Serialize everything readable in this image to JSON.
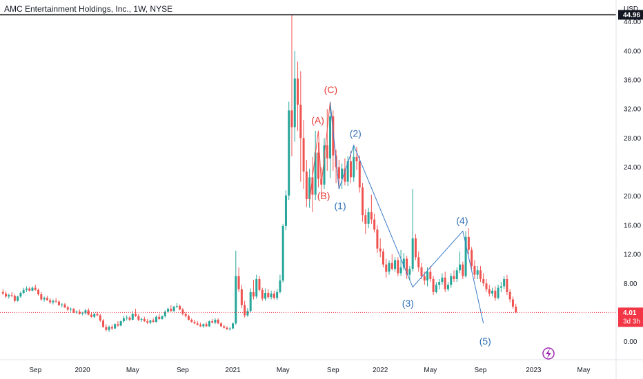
{
  "chart_data": {
    "type": "candlestick",
    "title": "AMC Entertainment Holdings, Inc., 1W, NYSE",
    "currency": "USD",
    "y_range": [
      -2.5,
      47
    ],
    "y_ticks": [
      "44.00",
      "40.00",
      "36.00",
      "32.00",
      "28.00",
      "24.00",
      "20.00",
      "16.00",
      "12.00",
      "8.00",
      "4.00",
      "0.00"
    ],
    "y_tick_values": [
      44,
      40,
      36,
      32,
      28,
      24,
      20,
      16,
      12,
      8,
      4,
      0
    ],
    "x_ticks": [
      {
        "label": "Sep",
        "t": 8
      },
      {
        "label": "2020",
        "t": 24
      },
      {
        "label": "May",
        "t": 41
      },
      {
        "label": "Sep",
        "t": 58
      },
      {
        "label": "2021",
        "t": 75
      },
      {
        "label": "May",
        "t": 92
      },
      {
        "label": "Sep",
        "t": 109
      },
      {
        "label": "2022",
        "t": 125
      },
      {
        "label": "May",
        "t": 142
      },
      {
        "label": "Sep",
        "t": 159
      },
      {
        "label": "2023",
        "t": 177
      },
      {
        "label": "May",
        "t": 194
      }
    ],
    "x_range": [
      -4,
      205
    ],
    "horizontal_line": {
      "value": 44.96,
      "label": "44.96",
      "color": "#000000"
    },
    "last_price": {
      "value": 4.01,
      "label": "4.01",
      "countdown": "3d 3h",
      "color": "#f23645"
    },
    "candles": [
      [
        -3,
        6.8,
        7.2,
        6.4,
        6.6
      ],
      [
        -2,
        6.6,
        6.9,
        6.0,
        6.2
      ],
      [
        -1,
        6.2,
        6.6,
        5.9,
        6.4
      ],
      [
        0,
        6.4,
        6.8,
        6.1,
        6.3
      ],
      [
        1,
        6.3,
        6.5,
        5.4,
        5.6
      ],
      [
        2,
        5.6,
        6.3,
        5.5,
        6.2
      ],
      [
        3,
        6.2,
        6.9,
        6.0,
        6.7
      ],
      [
        4,
        6.7,
        7.4,
        6.5,
        7.1
      ],
      [
        5,
        7.1,
        7.6,
        6.8,
        7.3
      ],
      [
        6,
        7.3,
        7.5,
        6.9,
        7.0
      ],
      [
        7,
        7.0,
        7.6,
        6.9,
        7.4
      ],
      [
        8,
        7.4,
        7.8,
        7.0,
        7.1
      ],
      [
        9,
        7.1,
        7.3,
        6.3,
        6.5
      ],
      [
        10,
        6.5,
        6.8,
        5.6,
        5.8
      ],
      [
        11,
        5.8,
        6.2,
        5.5,
        6.0
      ],
      [
        12,
        6.0,
        6.3,
        5.6,
        5.7
      ],
      [
        13,
        5.7,
        6.0,
        5.2,
        5.4
      ],
      [
        14,
        5.4,
        5.8,
        5.1,
        5.6
      ],
      [
        15,
        5.6,
        6.0,
        5.3,
        5.5
      ],
      [
        16,
        5.5,
        5.7,
        4.9,
        5.0
      ],
      [
        17,
        5.0,
        5.3,
        4.7,
        5.1
      ],
      [
        18,
        5.1,
        5.3,
        4.6,
        4.7
      ],
      [
        19,
        4.7,
        4.9,
        4.2,
        4.4
      ],
      [
        20,
        4.4,
        4.7,
        4.1,
        4.5
      ],
      [
        21,
        4.5,
        4.6,
        3.9,
        4.0
      ],
      [
        22,
        4.0,
        4.3,
        3.8,
        4.1
      ],
      [
        23,
        4.1,
        4.4,
        3.7,
        3.8
      ],
      [
        24,
        3.8,
        4.1,
        3.6,
        3.9
      ],
      [
        25,
        3.9,
        4.5,
        3.7,
        4.3
      ],
      [
        26,
        4.3,
        4.6,
        3.6,
        3.7
      ],
      [
        27,
        3.7,
        4.0,
        3.3,
        3.4
      ],
      [
        28,
        3.4,
        3.9,
        3.2,
        3.8
      ],
      [
        29,
        3.8,
        4.1,
        3.5,
        3.6
      ],
      [
        30,
        3.6,
        3.8,
        2.7,
        2.9
      ],
      [
        31,
        2.9,
        3.1,
        1.9,
        2.0
      ],
      [
        32,
        2.0,
        2.4,
        1.4,
        1.6
      ],
      [
        33,
        1.6,
        2.2,
        1.3,
        2.0
      ],
      [
        34,
        2.0,
        2.3,
        1.6,
        1.8
      ],
      [
        35,
        1.8,
        2.5,
        1.7,
        2.4
      ],
      [
        36,
        2.4,
        2.8,
        2.0,
        2.2
      ],
      [
        37,
        2.2,
        2.9,
        2.1,
        2.8
      ],
      [
        38,
        2.8,
        3.5,
        2.6,
        3.2
      ],
      [
        39,
        3.2,
        3.6,
        2.9,
        3.3
      ],
      [
        40,
        3.3,
        3.5,
        2.8,
        3.0
      ],
      [
        41,
        3.0,
        4.2,
        2.9,
        3.8
      ],
      [
        42,
        3.8,
        4.5,
        3.4,
        3.5
      ],
      [
        43,
        3.5,
        3.8,
        2.8,
        3.0
      ],
      [
        44,
        3.0,
        3.3,
        2.7,
        3.1
      ],
      [
        45,
        3.1,
        3.4,
        2.7,
        2.8
      ],
      [
        46,
        2.8,
        3.1,
        2.4,
        2.6
      ],
      [
        47,
        2.6,
        3.0,
        2.4,
        2.9
      ],
      [
        48,
        2.9,
        3.2,
        2.6,
        2.7
      ],
      [
        49,
        2.7,
        3.6,
        2.6,
        3.4
      ],
      [
        50,
        3.4,
        3.8,
        3.0,
        3.1
      ],
      [
        51,
        3.1,
        3.6,
        3.0,
        3.5
      ],
      [
        52,
        3.5,
        4.3,
        3.3,
        4.1
      ],
      [
        53,
        4.1,
        4.7,
        3.9,
        4.5
      ],
      [
        54,
        4.5,
        5.0,
        4.1,
        4.2
      ],
      [
        55,
        4.2,
        4.9,
        4.1,
        4.8
      ],
      [
        56,
        4.8,
        5.3,
        4.6,
        4.9
      ],
      [
        57,
        4.9,
        5.1,
        4.3,
        4.4
      ],
      [
        58,
        4.4,
        4.6,
        3.6,
        3.8
      ],
      [
        59,
        3.8,
        4.0,
        3.3,
        3.5
      ],
      [
        60,
        3.5,
        3.7,
        2.9,
        3.0
      ],
      [
        61,
        3.0,
        3.2,
        2.6,
        2.7
      ],
      [
        62,
        2.7,
        3.0,
        2.4,
        2.5
      ],
      [
        63,
        2.5,
        2.8,
        2.2,
        2.3
      ],
      [
        64,
        2.3,
        2.6,
        2.0,
        2.1
      ],
      [
        65,
        2.1,
        2.5,
        1.9,
        2.4
      ],
      [
        66,
        2.4,
        2.7,
        2.0,
        2.1
      ],
      [
        67,
        2.1,
        2.9,
        2.0,
        2.8
      ],
      [
        68,
        2.8,
        3.1,
        2.5,
        2.6
      ],
      [
        69,
        2.6,
        3.2,
        2.4,
        3.0
      ],
      [
        70,
        3.0,
        3.2,
        2.4,
        2.5
      ],
      [
        71,
        2.5,
        2.7,
        2.0,
        2.1
      ],
      [
        72,
        2.1,
        2.3,
        1.8,
        1.9
      ],
      [
        73,
        1.9,
        2.1,
        1.6,
        1.7
      ],
      [
        74,
        1.7,
        2.0,
        1.5,
        1.8
      ],
      [
        75,
        1.8,
        2.6,
        1.7,
        2.5
      ],
      [
        76,
        2.5,
        12.5,
        2.3,
        9.0
      ],
      [
        77,
        9.0,
        10.2,
        6.8,
        7.2
      ],
      [
        78,
        7.2,
        7.8,
        4.6,
        5.0
      ],
      [
        79,
        5.0,
        5.6,
        3.3,
        3.6
      ],
      [
        80,
        3.6,
        4.6,
        3.4,
        4.2
      ],
      [
        81,
        4.2,
        7.3,
        4.0,
        6.8
      ],
      [
        82,
        6.8,
        8.5,
        5.8,
        6.2
      ],
      [
        83,
        6.2,
        9.2,
        5.9,
        8.6
      ],
      [
        84,
        8.6,
        9.0,
        6.9,
        7.1
      ],
      [
        85,
        7.1,
        7.4,
        5.6,
        5.9
      ],
      [
        86,
        5.9,
        7.3,
        5.6,
        6.7
      ],
      [
        87,
        6.7,
        7.2,
        5.9,
        6.1
      ],
      [
        88,
        6.1,
        7.0,
        5.8,
        6.6
      ],
      [
        89,
        6.6,
        7.0,
        5.8,
        6.0
      ],
      [
        90,
        6.0,
        7.2,
        5.7,
        6.8
      ],
      [
        91,
        6.8,
        9.2,
        6.6,
        8.4
      ],
      [
        92,
        8.4,
        16.2,
        8.1,
        15.9
      ],
      [
        93,
        15.9,
        20.8,
        15.3,
        20.1
      ],
      [
        94,
        20.1,
        33.0,
        19.5,
        31.8
      ],
      [
        95,
        31.8,
        44.96,
        25.5,
        29.5
      ],
      [
        96,
        29.5,
        40.0,
        27.5,
        36.2
      ],
      [
        97,
        36.2,
        38.5,
        29.0,
        32.6
      ],
      [
        98,
        32.6,
        37.2,
        22.0,
        28.0
      ],
      [
        99,
        28.0,
        30.5,
        21.0,
        23.4
      ],
      [
        100,
        23.4,
        25.0,
        18.5,
        19.6
      ],
      [
        101,
        19.6,
        23.8,
        18.4,
        22.6
      ],
      [
        102,
        22.6,
        25.4,
        17.8,
        20.2
      ],
      [
        103,
        20.2,
        29.0,
        19.5,
        26.0
      ],
      [
        104,
        26.0,
        27.4,
        21.2,
        22.4
      ],
      [
        105,
        22.4,
        24.0,
        20.3,
        21.6
      ],
      [
        106,
        21.6,
        28.0,
        21.0,
        27.0
      ],
      [
        107,
        27.0,
        32.0,
        23.5,
        25.2
      ],
      [
        108,
        25.2,
        33.0,
        22.5,
        31.0
      ],
      [
        109,
        31.0,
        31.8,
        23.5,
        25.6
      ],
      [
        110,
        25.6,
        26.4,
        21.8,
        24.0
      ],
      [
        111,
        24.0,
        25.0,
        21.3,
        22.4
      ],
      [
        112,
        22.4,
        24.5,
        21.0,
        23.8
      ],
      [
        113,
        23.8,
        25.2,
        21.5,
        22.0
      ],
      [
        114,
        22.0,
        25.5,
        21.4,
        24.8
      ],
      [
        115,
        24.8,
        26.2,
        21.8,
        22.6
      ],
      [
        116,
        22.6,
        27.0,
        22.0,
        25.4
      ],
      [
        117,
        25.4,
        26.8,
        23.6,
        24.8
      ],
      [
        118,
        24.8,
        25.6,
        20.5,
        21.2
      ],
      [
        119,
        21.2,
        21.8,
        16.5,
        17.4
      ],
      [
        120,
        17.4,
        18.2,
        14.8,
        16.2
      ],
      [
        121,
        16.2,
        18.4,
        15.6,
        17.8
      ],
      [
        122,
        17.8,
        20.2,
        16.2,
        16.8
      ],
      [
        123,
        16.8,
        17.6,
        15.0,
        15.4
      ],
      [
        124,
        15.4,
        16.0,
        12.2,
        12.8
      ],
      [
        125,
        12.8,
        14.2,
        11.6,
        12.4
      ],
      [
        126,
        12.4,
        12.8,
        10.2,
        10.6
      ],
      [
        127,
        10.6,
        11.4,
        8.8,
        9.6
      ],
      [
        128,
        9.6,
        11.2,
        9.2,
        10.8
      ],
      [
        129,
        10.8,
        12.0,
        9.8,
        10.0
      ],
      [
        130,
        10.0,
        11.6,
        9.6,
        11.2
      ],
      [
        131,
        11.2,
        11.6,
        9.0,
        9.4
      ],
      [
        132,
        9.4,
        12.6,
        9.0,
        10.2
      ],
      [
        133,
        10.2,
        12.2,
        9.8,
        11.4
      ],
      [
        134,
        11.4,
        11.8,
        8.6,
        9.2
      ],
      [
        135,
        9.2,
        10.4,
        8.4,
        10.0
      ],
      [
        136,
        10.0,
        21.0,
        9.6,
        14.2
      ],
      [
        137,
        14.2,
        14.8,
        11.2,
        11.6
      ],
      [
        138,
        11.6,
        12.4,
        9.6,
        10.2
      ],
      [
        139,
        10.2,
        10.8,
        8.6,
        9.0
      ],
      [
        140,
        9.0,
        9.6,
        7.8,
        8.4
      ],
      [
        141,
        8.4,
        10.2,
        7.6,
        9.6
      ],
      [
        142,
        9.6,
        10.4,
        8.2,
        8.6
      ],
      [
        143,
        8.6,
        9.0,
        6.4,
        6.8
      ],
      [
        144,
        6.8,
        8.2,
        6.6,
        7.8
      ],
      [
        145,
        7.8,
        8.6,
        7.2,
        8.2
      ],
      [
        146,
        8.2,
        9.4,
        7.8,
        8.8
      ],
      [
        147,
        8.8,
        9.6,
        6.8,
        7.2
      ],
      [
        148,
        7.2,
        8.2,
        6.9,
        7.8
      ],
      [
        149,
        7.8,
        9.4,
        7.4,
        9.0
      ],
      [
        150,
        9.0,
        9.8,
        8.2,
        8.6
      ],
      [
        151,
        8.6,
        10.2,
        8.2,
        9.8
      ],
      [
        152,
        9.8,
        12.4,
        9.4,
        10.6
      ],
      [
        153,
        10.6,
        11.0,
        8.6,
        9.0
      ],
      [
        154,
        9.0,
        15.2,
        8.8,
        14.4
      ],
      [
        155,
        14.4,
        15.6,
        12.0,
        12.6
      ],
      [
        156,
        12.6,
        13.0,
        10.0,
        10.4
      ],
      [
        157,
        10.4,
        11.2,
        8.6,
        9.2
      ],
      [
        158,
        9.2,
        10.4,
        8.6,
        9.8
      ],
      [
        159,
        9.8,
        10.4,
        8.2,
        8.6
      ],
      [
        160,
        8.6,
        9.4,
        7.6,
        8.0
      ],
      [
        161,
        8.0,
        8.6,
        6.8,
        7.2
      ],
      [
        162,
        7.2,
        7.8,
        6.2,
        6.6
      ],
      [
        163,
        6.6,
        7.4,
        6.2,
        7.0
      ],
      [
        164,
        7.0,
        7.6,
        5.6,
        6.0
      ],
      [
        165,
        6.0,
        7.8,
        5.8,
        7.4
      ],
      [
        166,
        7.4,
        8.2,
        6.8,
        7.6
      ],
      [
        167,
        7.6,
        9.0,
        7.2,
        8.6
      ],
      [
        168,
        8.6,
        9.2,
        6.4,
        6.8
      ],
      [
        169,
        6.8,
        7.2,
        5.4,
        5.8
      ],
      [
        170,
        5.8,
        6.2,
        4.5,
        4.8
      ],
      [
        171,
        4.8,
        5.2,
        3.9,
        4.01
      ]
    ],
    "wave_lines": [
      {
        "color": "#ef5350",
        "points": [
          [
            101,
            19.4
          ],
          [
            104,
            29.0
          ],
          [
            105,
            21.5
          ],
          [
            108,
            33.0
          ],
          [
            111,
            21.0
          ]
        ]
      },
      {
        "color": "#3a7bc8",
        "points": [
          [
            108,
            33.0
          ],
          [
            111,
            21.0
          ],
          [
            116,
            27.0
          ],
          [
            136,
            7.5
          ],
          [
            153,
            15.2
          ],
          [
            160,
            2.5
          ]
        ]
      }
    ],
    "annotations": [
      {
        "text": "(A)",
        "t": 103.8,
        "y": 30.0,
        "color": "red"
      },
      {
        "text": "(B)",
        "t": 105.8,
        "y": 19.6,
        "color": "red"
      },
      {
        "text": "(C)",
        "t": 108.2,
        "y": 34.2,
        "color": "red"
      },
      {
        "text": "(1)",
        "t": 111.4,
        "y": 18.2,
        "color": "blue"
      },
      {
        "text": "(2)",
        "t": 116.6,
        "y": 28.2,
        "color": "blue"
      },
      {
        "text": "(3)",
        "t": 134.4,
        "y": 4.8,
        "color": "blue"
      },
      {
        "text": "(4)",
        "t": 152.8,
        "y": 16.2,
        "color": "blue"
      },
      {
        "text": "(5)",
        "t": 160.6,
        "y": -0.4,
        "color": "blue"
      }
    ],
    "up_color": "#26a69a",
    "down_color": "#ef5350"
  }
}
